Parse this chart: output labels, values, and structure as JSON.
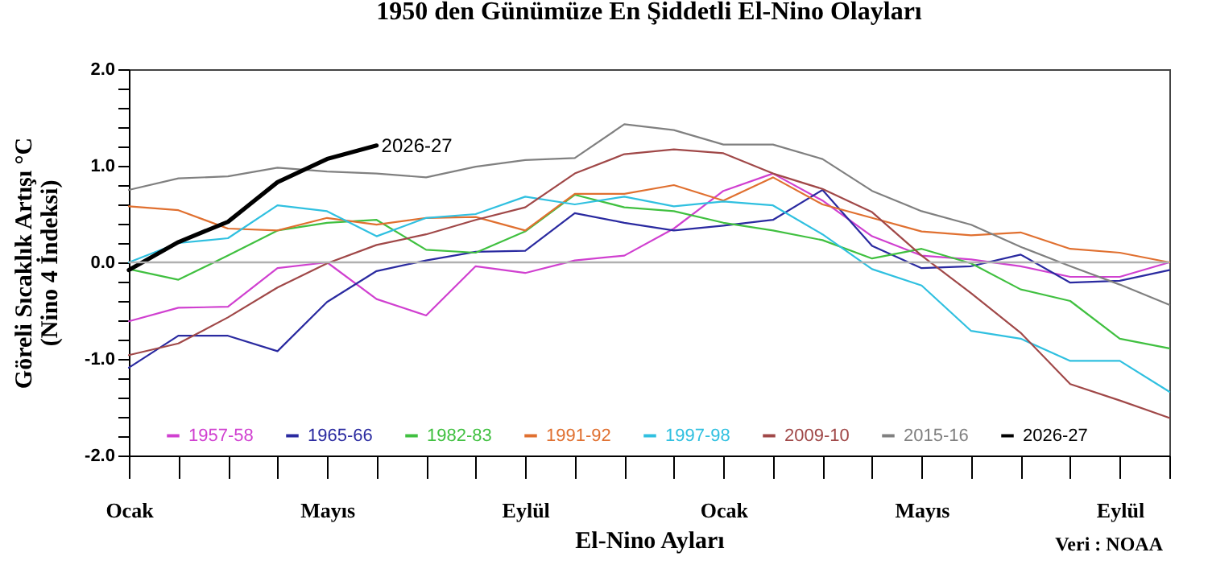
{
  "chart_data": {
    "type": "line",
    "title": "1950 den Günümüze En Şiddetli El-Nino Olayları",
    "xlabel": "El-Nino Ayları",
    "ylabel": "Göreli Sıcaklık Artışı °C\n(Nino 4 İndeksi)",
    "categories": [
      "Ocak",
      null,
      null,
      null,
      "Mayıs",
      null,
      null,
      null,
      "Eylül",
      null,
      null,
      null,
      "Ocak",
      null,
      null,
      null,
      "Mayıs",
      null,
      null,
      null,
      "Eylül",
      null
    ],
    "ylim": [
      -2,
      2
    ],
    "yticks": [
      {
        "value": -2,
        "label": "-2.0"
      },
      {
        "value": -1.8,
        "label": null
      },
      {
        "value": -1.6,
        "label": null
      },
      {
        "value": -1.4,
        "label": null
      },
      {
        "value": -1.2,
        "label": null
      },
      {
        "value": -1,
        "label": "-1.0"
      },
      {
        "value": -0.8,
        "label": null
      },
      {
        "value": -0.6,
        "label": null
      },
      {
        "value": -0.4,
        "label": null
      },
      {
        "value": -0.2,
        "label": null
      },
      {
        "value": 0,
        "label": "0.0"
      },
      {
        "value": 0.2,
        "label": null
      },
      {
        "value": 0.4,
        "label": null
      },
      {
        "value": 0.6,
        "label": null
      },
      {
        "value": 0.8,
        "label": null
      },
      {
        "value": 1,
        "label": "1.0"
      },
      {
        "value": 1.2,
        "label": null
      },
      {
        "value": 1.4,
        "label": null
      },
      {
        "value": 1.6,
        "label": null
      },
      {
        "value": 1.8,
        "label": null
      },
      {
        "value": 2,
        "label": "2.0"
      }
    ],
    "grid": false,
    "legend": "bottom",
    "marker": "none",
    "line_style": "solid",
    "ref_lines": [
      {
        "axis": "y",
        "value": 0,
        "color": "#b0b0b0"
      }
    ],
    "annotations": [
      "Veri : NOAA"
    ],
    "series": [
      {
        "name": "1957-58",
        "color": "#d040d0",
        "values": [
          -0.61,
          -0.47,
          -0.46,
          -0.06,
          0.0,
          -0.38,
          -0.55,
          -0.04,
          -0.11,
          0.02,
          0.07,
          0.35,
          0.74,
          0.92,
          0.64,
          0.27,
          0.07,
          0.03,
          -0.04,
          -0.15,
          -0.15,
          0.0
        ]
      },
      {
        "name": "1965-66",
        "color": "#2a2aa0",
        "values": [
          -1.09,
          -0.76,
          -0.76,
          -0.92,
          -0.41,
          -0.09,
          0.02,
          0.11,
          0.12,
          0.51,
          0.41,
          0.33,
          0.38,
          0.44,
          0.75,
          0.17,
          -0.06,
          -0.04,
          0.08,
          -0.21,
          -0.19,
          -0.08
        ]
      },
      {
        "name": "1982-83",
        "color": "#40c040",
        "values": [
          -0.07,
          -0.18,
          0.07,
          0.33,
          0.41,
          0.44,
          0.13,
          0.1,
          0.32,
          0.7,
          0.57,
          0.53,
          0.41,
          0.33,
          0.23,
          0.04,
          0.14,
          -0.01,
          -0.28,
          -0.4,
          -0.79,
          -0.89
        ]
      },
      {
        "name": "1991-92",
        "color": "#e07030",
        "values": [
          0.58,
          0.54,
          0.35,
          0.33,
          0.46,
          0.39,
          0.46,
          0.47,
          0.33,
          0.71,
          0.71,
          0.8,
          0.64,
          0.88,
          0.6,
          0.46,
          0.32,
          0.28,
          0.31,
          0.14,
          0.1,
          0.0
        ]
      },
      {
        "name": "1997-98",
        "color": "#30c0e0",
        "values": [
          0.0,
          0.2,
          0.25,
          0.59,
          0.53,
          0.27,
          0.46,
          0.5,
          0.68,
          0.6,
          0.68,
          0.58,
          0.63,
          0.59,
          0.29,
          -0.07,
          -0.24,
          -0.71,
          -0.79,
          -1.02,
          -1.02,
          -1.34
        ]
      },
      {
        "name": "2009-10",
        "color": "#a04848",
        "values": [
          -0.96,
          -0.84,
          -0.57,
          -0.26,
          -0.01,
          0.18,
          0.29,
          0.44,
          0.57,
          0.92,
          1.12,
          1.17,
          1.13,
          0.92,
          0.76,
          0.52,
          0.07,
          -0.32,
          -0.73,
          -1.26,
          -1.43,
          -1.61
        ]
      },
      {
        "name": "2015-16",
        "color": "#808080",
        "values": [
          0.75,
          0.87,
          0.89,
          0.98,
          0.94,
          0.92,
          0.88,
          0.99,
          1.06,
          1.08,
          1.43,
          1.37,
          1.22,
          1.22,
          1.07,
          0.74,
          0.53,
          0.39,
          0.16,
          -0.04,
          -0.23,
          -0.44
        ]
      },
      {
        "name": "2026-27",
        "color": "#000000",
        "values": [
          -0.08,
          0.21,
          0.42,
          0.83,
          1.07,
          1.21,
          null,
          null,
          null,
          null,
          null,
          null,
          null,
          null,
          null,
          null,
          null,
          null,
          null,
          null,
          null,
          null
        ]
      }
    ]
  }
}
